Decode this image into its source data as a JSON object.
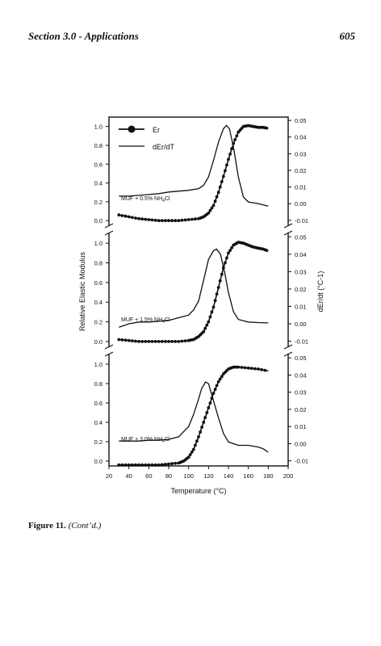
{
  "page": {
    "section_title": "Section 3.0 - Applications",
    "page_number": "605"
  },
  "caption": {
    "label": "Figure 11.",
    "text": "(Cont’d.)"
  },
  "chart_data": {
    "type": "line",
    "xlabel": "Temperature (°C)",
    "ylabel": "Relative Elastic Modulus",
    "y2label": "dEr/dt (°C-1)",
    "xlim": [
      20,
      200
    ],
    "xticks": [
      20,
      40,
      60,
      80,
      100,
      120,
      140,
      160,
      180,
      200
    ],
    "ylim": [
      -0.05,
      1.1
    ],
    "yticks": [
      0.0,
      0.2,
      0.4,
      0.6,
      0.8,
      1.0
    ],
    "y2lim": [
      -0.013,
      0.052
    ],
    "y2ticks": [
      -0.01,
      0.0,
      0.01,
      0.02,
      0.03,
      0.04,
      0.05
    ],
    "legend": {
      "placement": "top-left",
      "entries": [
        {
          "name": "Er",
          "style": "line-with-markers"
        },
        {
          "name": "dEr/dT",
          "style": "line"
        }
      ]
    },
    "panels": [
      {
        "label": "MUF + 0.5% NH",
        "label_sub": "4",
        "label_end": "Cl",
        "series": [
          {
            "name": "Er",
            "axis": "left",
            "x": [
              30,
              40,
              50,
              60,
              70,
              80,
              90,
              100,
              110,
              115,
              120,
              125,
              130,
              135,
              140,
              145,
              150,
              155,
              160,
              165,
              170,
              175,
              180
            ],
            "y": [
              0.06,
              0.04,
              0.02,
              0.01,
              0.0,
              0.0,
              0.0,
              0.01,
              0.02,
              0.04,
              0.08,
              0.16,
              0.3,
              0.47,
              0.65,
              0.82,
              0.94,
              1.0,
              1.01,
              1.0,
              0.99,
              0.99,
              0.98
            ]
          },
          {
            "name": "dEr/dT",
            "axis": "right",
            "x": [
              30,
              40,
              50,
              60,
              70,
              80,
              90,
              100,
              110,
              115,
              120,
              125,
              130,
              135,
              138,
              141,
              145,
              150,
              155,
              160,
              170,
              180
            ],
            "y": [
              0.0045,
              0.0045,
              0.005,
              0.0055,
              0.006,
              0.007,
              0.0075,
              0.008,
              0.009,
              0.011,
              0.016,
              0.026,
              0.037,
              0.045,
              0.047,
              0.045,
              0.034,
              0.016,
              0.004,
              0.001,
              0.0,
              -0.0015
            ]
          }
        ]
      },
      {
        "label": "MUF + 1.5% NH",
        "label_sub": "4",
        "label_end": "Cl",
        "series": [
          {
            "name": "Er",
            "axis": "left",
            "x": [
              30,
              40,
              50,
              60,
              70,
              80,
              90,
              100,
              105,
              110,
              115,
              120,
              125,
              130,
              135,
              140,
              145,
              150,
              155,
              160,
              165,
              170,
              175,
              180
            ],
            "y": [
              0.02,
              0.01,
              0.0,
              0.0,
              0.0,
              0.0,
              0.0,
              0.01,
              0.02,
              0.05,
              0.1,
              0.2,
              0.35,
              0.55,
              0.75,
              0.9,
              0.98,
              1.01,
              1.0,
              0.98,
              0.96,
              0.95,
              0.94,
              0.92
            ]
          },
          {
            "name": "dEr/dT",
            "axis": "right",
            "x": [
              30,
              40,
              50,
              60,
              70,
              80,
              90,
              100,
              105,
              110,
              115,
              120,
              125,
              128,
              132,
              136,
              140,
              145,
              150,
              160,
              170,
              180
            ],
            "y": [
              -0.002,
              0.0,
              0.001,
              0.001,
              0.0015,
              0.002,
              0.0035,
              0.005,
              0.008,
              0.013,
              0.025,
              0.037,
              0.042,
              0.043,
              0.04,
              0.03,
              0.018,
              0.007,
              0.0025,
              0.001,
              0.0007,
              0.0005
            ]
          }
        ]
      },
      {
        "label": "MUF + 3.0% NH",
        "label_sub": "4",
        "label_end": "Cl",
        "series": [
          {
            "name": "Er",
            "axis": "left",
            "x": [
              30,
              40,
              50,
              60,
              70,
              80,
              90,
              95,
              100,
              105,
              110,
              115,
              120,
              125,
              130,
              135,
              140,
              145,
              150,
              160,
              170,
              180
            ],
            "y": [
              -0.04,
              -0.04,
              -0.04,
              -0.04,
              -0.04,
              -0.03,
              -0.02,
              0.0,
              0.04,
              0.12,
              0.25,
              0.4,
              0.55,
              0.7,
              0.82,
              0.9,
              0.95,
              0.97,
              0.97,
              0.96,
              0.95,
              0.93
            ]
          },
          {
            "name": "dEr/dT",
            "axis": "right",
            "x": [
              30,
              40,
              50,
              60,
              70,
              80,
              90,
              100,
              105,
              110,
              113,
              117,
              120,
              125,
              130,
              135,
              140,
              150,
              160,
              170,
              175,
              180
            ],
            "y": [
              0.0015,
              0.0015,
              0.0015,
              0.002,
              0.002,
              0.0025,
              0.004,
              0.01,
              0.017,
              0.026,
              0.032,
              0.036,
              0.035,
              0.025,
              0.015,
              0.006,
              0.001,
              -0.001,
              -0.001,
              -0.002,
              -0.003,
              -0.005
            ]
          }
        ]
      }
    ]
  }
}
